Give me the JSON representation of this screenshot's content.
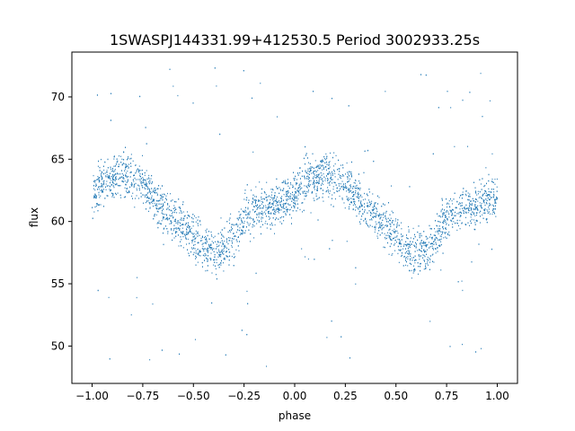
{
  "chart_data": {
    "type": "scatter",
    "title": "1SWASPJ144331.99+412530.5 Period 3002933.25s",
    "xlabel": "phase",
    "ylabel": "flux",
    "xlim": [
      -1.1,
      1.1
    ],
    "ylim": [
      47.0,
      73.6
    ],
    "x_ticks": [
      -1.0,
      -0.75,
      -0.5,
      -0.25,
      0.0,
      0.25,
      0.5,
      0.75,
      1.0
    ],
    "x_tick_labels": [
      "−1.00",
      "−0.75",
      "−0.50",
      "−0.25",
      "0.00",
      "0.25",
      "0.50",
      "0.75",
      "1.00"
    ],
    "y_ticks": [
      50,
      55,
      60,
      65,
      70
    ],
    "y_tick_labels": [
      "50",
      "55",
      "60",
      "65",
      "70"
    ],
    "grid": false,
    "legend": "none",
    "marker_color": "#1f77b4",
    "series": [
      {
        "x": [
          -1.0,
          -0.95,
          -0.9,
          -0.85,
          -0.8,
          -0.75,
          -0.7,
          -0.65,
          -0.6,
          -0.55,
          -0.5,
          -0.45,
          -0.4,
          -0.35,
          -0.3,
          -0.25,
          -0.2,
          -0.15,
          -0.1,
          -0.05,
          0.0,
          0.05,
          0.1,
          0.15,
          0.2,
          0.25,
          0.3,
          0.35,
          0.4,
          0.45,
          0.5,
          0.55,
          0.6,
          0.65,
          0.7,
          0.75,
          0.8,
          0.85,
          0.9,
          0.95,
          1.0
        ],
        "y": [
          62.0,
          63.0,
          63.5,
          63.8,
          63.5,
          63.0,
          62.0,
          61.0,
          60.3,
          59.7,
          58.8,
          58.0,
          57.5,
          57.7,
          58.8,
          60.3,
          61.0,
          61.2,
          61.3,
          61.7,
          62.0,
          63.0,
          63.5,
          63.8,
          63.5,
          63.0,
          62.0,
          61.0,
          60.3,
          59.7,
          58.8,
          58.0,
          57.5,
          57.7,
          58.8,
          60.3,
          61.0,
          61.2,
          61.3,
          61.7,
          62.0
        ]
      }
    ],
    "scatter_spread": 2.3
  }
}
